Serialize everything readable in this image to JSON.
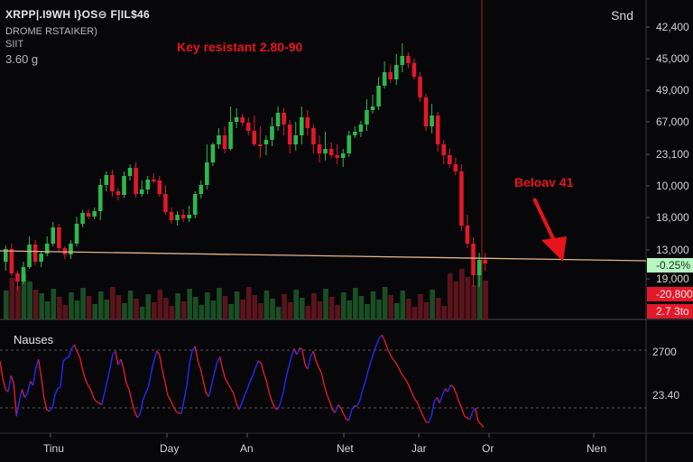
{
  "header": {
    "ticker": "XRPP|.I9WH I}OS⊖ F|IL$46",
    "exchange": "DROME RSTAIKER)",
    "unit": "SIIT",
    "price": "3.60 g",
    "corner_label": "Snd"
  },
  "annotations": {
    "resistance": "Key resistant 2.80-90",
    "below": "Beloav 41"
  },
  "colors": {
    "background": "#07070a",
    "up": "#2eb84d",
    "down": "#e3182a",
    "support_line": "#e2b48a",
    "annotation": "#e8141c",
    "indicator_up": "#2727ff",
    "indicator_down": "#e3182a",
    "badge_green": "#b9f5c2",
    "badge_red": "#e3182a"
  },
  "chart_data": {
    "type": "candlestick",
    "price_axis_labels": [
      "42,400",
      "45,000",
      "49,000",
      "67,000",
      "23,100",
      "10,000",
      "18,000",
      "13,000",
      "19,000"
    ],
    "price_badges": [
      {
        "text": "-0.25%",
        "style": "green"
      },
      {
        "text": "-20,800",
        "style": "red"
      },
      {
        "text": "2.7 3to",
        "style": "red"
      }
    ],
    "x_labels": [
      "Tinu",
      "Day",
      "An",
      "Net",
      "Jar",
      "Or",
      "Nen"
    ],
    "candles": [
      [
        290,
        276,
        300,
        272
      ],
      [
        276,
        303,
        306,
        270
      ],
      [
        303,
        312,
        322,
        300
      ],
      [
        312,
        296,
        315,
        290
      ],
      [
        296,
        271,
        298,
        262
      ],
      [
        271,
        290,
        294,
        266
      ],
      [
        290,
        281,
        296,
        278
      ],
      [
        281,
        270,
        284,
        262
      ],
      [
        270,
        252,
        273,
        246
      ],
      [
        252,
        275,
        280,
        248
      ],
      [
        275,
        282,
        287,
        273
      ],
      [
        282,
        270,
        287,
        266
      ],
      [
        270,
        248,
        273,
        240
      ],
      [
        248,
        236,
        252,
        233
      ],
      [
        236,
        240,
        243,
        232
      ],
      [
        240,
        234,
        243,
        230
      ],
      [
        234,
        205,
        244,
        198
      ],
      [
        205,
        194,
        212,
        190
      ],
      [
        194,
        212,
        218,
        188
      ],
      [
        212,
        216,
        222,
        209
      ],
      [
        216,
        195,
        219,
        190
      ],
      [
        195,
        186,
        200,
        182
      ],
      [
        186,
        215,
        219,
        180
      ],
      [
        215,
        210,
        218,
        200
      ],
      [
        210,
        199,
        215,
        195
      ],
      [
        199,
        200,
        203,
        192
      ],
      [
        200,
        215,
        218,
        195
      ],
      [
        215,
        235,
        238,
        205
      ],
      [
        235,
        244,
        248,
        230
      ],
      [
        244,
        238,
        250,
        234
      ],
      [
        238,
        242,
        246,
        232
      ],
      [
        242,
        238,
        246,
        228
      ],
      [
        238,
        215,
        242,
        212
      ],
      [
        215,
        205,
        220,
        200
      ],
      [
        205,
        180,
        210,
        160
      ],
      [
        180,
        160,
        184,
        158
      ],
      [
        160,
        150,
        165,
        142
      ],
      [
        150,
        165,
        170,
        140
      ],
      [
        165,
        135,
        167,
        118
      ],
      [
        135,
        130,
        142,
        120
      ],
      [
        130,
        136,
        140,
        126
      ],
      [
        136,
        145,
        150,
        130
      ],
      [
        145,
        160,
        162,
        128
      ],
      [
        160,
        160,
        175,
        140
      ],
      [
        160,
        155,
        172,
        150
      ],
      [
        155,
        140,
        162,
        130
      ],
      [
        140,
        125,
        145,
        118
      ],
      [
        125,
        138,
        150,
        120
      ],
      [
        138,
        160,
        170,
        133
      ],
      [
        160,
        150,
        167,
        135
      ],
      [
        150,
        130,
        160,
        118
      ],
      [
        130,
        142,
        150,
        122
      ],
      [
        142,
        160,
        170,
        138
      ],
      [
        160,
        170,
        180,
        150
      ],
      [
        170,
        165,
        178,
        146
      ],
      [
        165,
        172,
        175,
        158
      ],
      [
        172,
        175,
        182,
        160
      ],
      [
        175,
        170,
        185,
        165
      ],
      [
        170,
        150,
        174,
        145
      ],
      [
        150,
        146,
        153,
        140
      ],
      [
        146,
        138,
        152,
        134
      ],
      [
        138,
        122,
        145,
        110
      ],
      [
        122,
        118,
        126,
        105
      ],
      [
        118,
        95,
        122,
        85
      ],
      [
        95,
        80,
        98,
        68
      ],
      [
        80,
        88,
        92,
        72
      ],
      [
        88,
        72,
        94,
        60
      ],
      [
        72,
        62,
        80,
        48
      ],
      [
        62,
        70,
        76,
        58
      ],
      [
        70,
        85,
        88,
        65
      ],
      [
        85,
        108,
        113,
        80
      ],
      [
        108,
        140,
        145,
        104
      ],
      [
        140,
        128,
        148,
        115
      ],
      [
        128,
        160,
        168,
        124
      ],
      [
        160,
        172,
        182,
        155
      ],
      [
        172,
        182,
        186,
        165
      ],
      [
        182,
        190,
        194,
        175
      ],
      [
        190,
        250,
        256,
        182
      ],
      [
        250,
        270,
        275,
        238
      ],
      [
        270,
        305,
        318,
        263
      ],
      [
        305,
        288,
        318,
        280
      ],
      [
        288,
        292,
        300,
        280
      ]
    ],
    "support_line": {
      "start_y_rel": 278,
      "end_y_rel": 289
    },
    "indicator": {
      "title": "Nauses",
      "y_labels": [
        "2700",
        "23.40"
      ],
      "values": [
        0.8,
        0.58,
        0.45,
        0.42,
        0.62,
        0.53,
        0.12,
        0.3,
        0.45,
        0.35,
        0.4,
        0.55,
        0.5,
        0.7,
        0.82,
        0.6,
        0.35,
        0.2,
        0.18,
        0.22,
        0.38,
        0.46,
        0.48,
        0.8,
        0.83,
        0.85,
        0.95,
        1.0,
        0.92,
        0.85,
        0.7,
        0.58,
        0.5,
        0.45,
        0.35,
        0.3,
        0.28,
        0.26,
        0.4,
        0.55,
        0.7,
        0.88,
        0.92,
        0.75,
        0.82,
        0.7,
        0.52,
        0.45,
        0.3,
        0.18,
        0.1,
        0.15,
        0.32,
        0.4,
        0.48,
        0.65,
        0.8,
        0.92,
        0.88,
        0.7,
        0.55,
        0.38,
        0.32,
        0.25,
        0.18,
        0.16,
        0.15,
        0.32,
        0.5,
        0.78,
        0.93,
        0.98,
        0.8,
        0.7,
        0.55,
        0.4,
        0.36,
        0.5,
        0.65,
        0.78,
        0.85,
        0.7,
        0.58,
        0.52,
        0.46,
        0.4,
        0.28,
        0.2,
        0.28,
        0.38,
        0.45,
        0.55,
        0.62,
        0.72,
        0.8,
        0.78,
        0.65,
        0.55,
        0.4,
        0.3,
        0.22,
        0.2,
        0.28,
        0.4,
        0.58,
        0.72,
        0.85,
        0.95,
        0.88,
        0.96,
        0.94,
        0.75,
        0.7,
        0.85,
        0.92,
        0.8,
        0.72,
        0.65,
        0.5,
        0.38,
        0.3,
        0.2,
        0.16,
        0.26,
        0.22,
        0.15,
        0.08,
        0.07,
        0.2,
        0.25,
        0.24,
        0.32,
        0.45,
        0.55,
        0.68,
        0.8,
        0.9,
        1.0,
        1.08,
        1.12,
        1.05,
        0.95,
        0.88,
        0.82,
        0.78,
        0.72,
        0.65,
        0.6,
        0.55,
        0.48,
        0.4,
        0.33,
        0.28,
        0.2,
        0.12,
        0.05,
        0.04,
        0.12,
        0.3,
        0.35,
        0.28,
        0.38,
        0.46,
        0.42,
        0.5,
        0.48,
        0.4,
        0.3,
        0.22,
        0.12,
        0.1,
        0.08,
        0.18,
        0.22,
        0.06,
        0.02,
        -0.02
      ]
    }
  }
}
